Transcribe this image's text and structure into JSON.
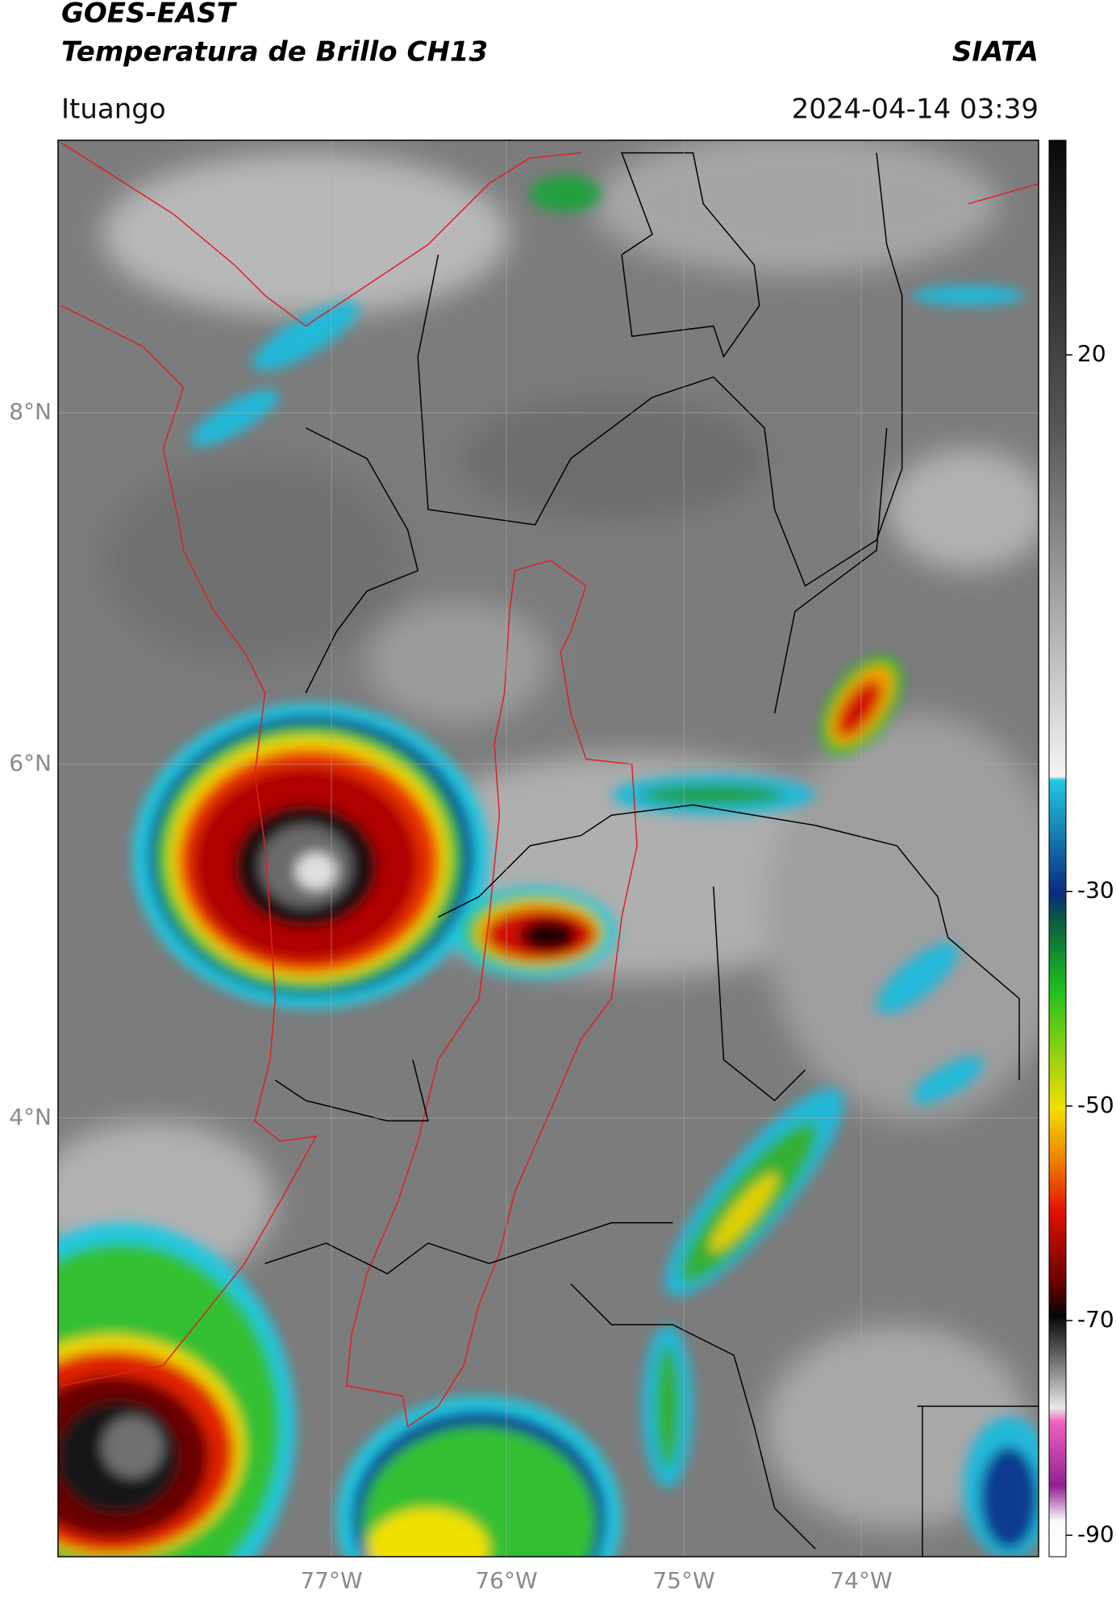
{
  "header": {
    "title_line1": "GOES-EAST",
    "title_line2": "Temperatura de Brillo CH13",
    "source": "SIATA",
    "location": "Ituango",
    "datetime": "2024-04-14 03:39"
  },
  "map": {
    "lat_labels": [
      "8°N",
      "6°N",
      "4°N"
    ],
    "lon_labels": [
      "77°W",
      "76°W",
      "75°W",
      "74°W"
    ]
  },
  "colorbar": {
    "lim": [
      -92,
      40
    ],
    "ticks": [
      20,
      -30,
      -50,
      -70,
      -90
    ]
  }
}
